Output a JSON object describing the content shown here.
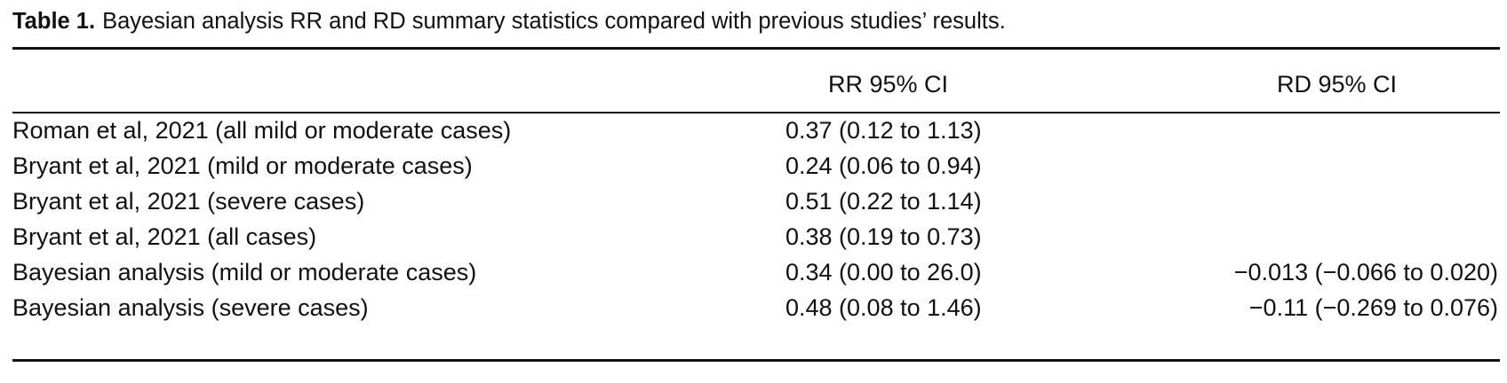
{
  "caption": {
    "label": "Table 1.",
    "text": "Bayesian analysis RR and RD summary statistics compared with previous studies’ results."
  },
  "table": {
    "headers": {
      "study": "",
      "rr": "RR 95% CI",
      "rd": "RD 95% CI"
    },
    "rows": [
      {
        "study": "Roman et al, 2021 (all mild or moderate cases)",
        "rr": "0.37 (0.12 to 1.13)",
        "rd": ""
      },
      {
        "study": "Bryant et al, 2021 (mild or moderate cases)",
        "rr": "0.24 (0.06 to 0.94)",
        "rd": ""
      },
      {
        "study": "Bryant et al, 2021 (severe cases)",
        "rr": "0.51 (0.22 to 1.14)",
        "rd": ""
      },
      {
        "study": "Bryant et al, 2021 (all cases)",
        "rr": "0.38 (0.19 to 0.73)",
        "rd": ""
      },
      {
        "study": "Bayesian analysis (mild or moderate cases)",
        "rr": "0.34 (0.00 to 26.0)",
        "rd": "−0.013 (−0.066 to 0.020)"
      },
      {
        "study": "Bayesian analysis (severe cases)",
        "rr": "0.48 (0.08 to 1.46)",
        "rd": "−0.11 (−0.269 to 0.076)"
      }
    ]
  }
}
